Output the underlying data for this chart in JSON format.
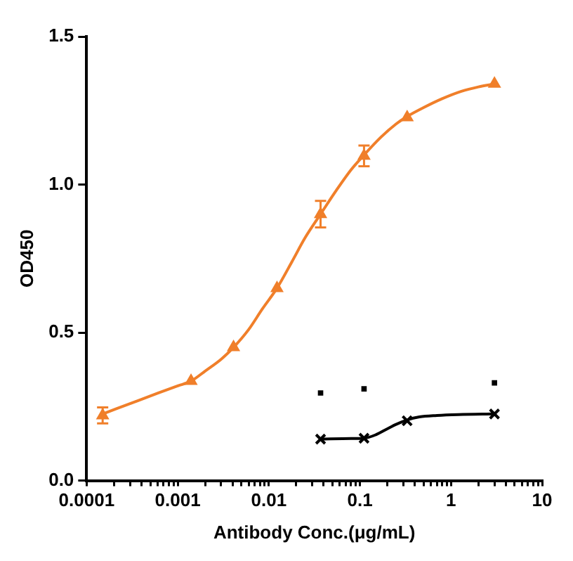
{
  "chart_data": {
    "type": "scatter",
    "xlabel": "Antibody Conc.(μg/mL)",
    "ylabel": "OD450",
    "log": "x",
    "grid": false,
    "legend": false,
    "xlim": [
      0.0001,
      10
    ],
    "ylim": [
      0,
      1.5
    ],
    "xticks": [
      0.0001,
      {
        "value": 0.0002,
        "label": null
      },
      {
        "value": 0.0003,
        "label": null
      },
      {
        "value": 0.0004,
        "label": null
      },
      {
        "value": 0.0005,
        "label": null
      },
      {
        "value": 0.0006,
        "label": null
      },
      {
        "value": 0.0007,
        "label": null
      },
      {
        "value": 0.0008,
        "label": null
      },
      {
        "value": 0.0009,
        "label": null
      },
      0.001,
      {
        "value": 0.002,
        "label": null
      },
      {
        "value": 0.003,
        "label": null
      },
      {
        "value": 0.004,
        "label": null
      },
      {
        "value": 0.005,
        "label": null
      },
      {
        "value": 0.006,
        "label": null
      },
      {
        "value": 0.007,
        "label": null
      },
      {
        "value": 0.008,
        "label": null
      },
      {
        "value": 0.009,
        "label": null
      },
      0.01,
      {
        "value": 0.02,
        "label": null
      },
      {
        "value": 0.03,
        "label": null
      },
      {
        "value": 0.04,
        "label": null
      },
      {
        "value": 0.05,
        "label": null
      },
      {
        "value": 0.06,
        "label": null
      },
      {
        "value": 0.07,
        "label": null
      },
      {
        "value": 0.08,
        "label": null
      },
      {
        "value": 0.09,
        "label": null
      },
      0.1,
      {
        "value": 0.2,
        "label": null
      },
      {
        "value": 0.3,
        "label": null
      },
      {
        "value": 0.4,
        "label": null
      },
      {
        "value": 0.5,
        "label": null
      },
      {
        "value": 0.6,
        "label": null
      },
      {
        "value": 0.7,
        "label": null
      },
      {
        "value": 0.8,
        "label": null
      },
      {
        "value": 0.9,
        "label": null
      },
      1,
      {
        "value": 2,
        "label": null
      },
      {
        "value": 3,
        "label": null
      },
      {
        "value": 4,
        "label": null
      },
      {
        "value": 5,
        "label": null
      },
      {
        "value": 6,
        "label": null
      },
      {
        "value": 7,
        "label": null
      },
      {
        "value": 8,
        "label": null
      },
      {
        "value": 9,
        "label": null
      },
      10
    ],
    "yticks": [
      {
        "value": 0,
        "label": "0.0"
      },
      {
        "value": 0.5,
        "label": "0.5"
      },
      {
        "value": 1,
        "label": "1.0"
      },
      {
        "value": 1.5,
        "label": "1.5"
      }
    ],
    "series": [
      {
        "type": "line",
        "color": "#f07f2a",
        "marker": "none",
        "x": [
          0.00015,
          0.0003,
          0.0006,
          0.001,
          0.0014,
          0.002,
          0.003,
          0.0041,
          0.006,
          0.0085,
          0.0123,
          0.018,
          0.025,
          0.037,
          0.055,
          0.08,
          0.111,
          0.17,
          0.25,
          0.33,
          0.5,
          0.8,
          1.3,
          2,
          3
        ],
        "values": [
          0.225,
          0.26,
          0.295,
          0.32,
          0.336,
          0.37,
          0.41,
          0.45,
          0.51,
          0.58,
          0.65,
          0.74,
          0.82,
          0.9,
          0.98,
          1.05,
          1.1,
          1.16,
          1.205,
          1.23,
          1.26,
          1.29,
          1.315,
          1.33,
          1.34
        ]
      },
      {
        "type": "scatter",
        "color": "#f07f2a",
        "marker": "triangle",
        "x": [
          0.00015,
          0.0014,
          0.0041,
          0.0123,
          0.037,
          0.111,
          0.33,
          3
        ],
        "values": [
          0.22,
          0.336,
          0.45,
          0.65,
          0.9,
          1.097,
          1.227,
          1.34
        ],
        "errors": [
          0.027,
          null,
          null,
          null,
          0.045,
          0.035,
          null,
          null
        ]
      },
      {
        "type": "line",
        "color": "#000000",
        "marker": "none",
        "x": [
          0.037,
          0.08,
          0.111,
          0.15,
          0.2,
          0.25,
          0.33,
          0.45,
          0.7,
          1.2,
          3
        ],
        "values": [
          0.14,
          0.142,
          0.143,
          0.155,
          0.175,
          0.19,
          0.205,
          0.215,
          0.22,
          0.223,
          0.225
        ]
      },
      {
        "type": "scatter",
        "color": "#000000",
        "marker": "cross",
        "x": [
          0.037,
          0.111,
          0.33,
          3
        ],
        "values": [
          0.14,
          0.143,
          0.202,
          0.225
        ]
      },
      {
        "type": "scatter",
        "color": "#000000",
        "marker": "square",
        "x": [
          0.037,
          0.111,
          3
        ],
        "values": [
          0.296,
          0.31,
          0.33
        ]
      }
    ]
  }
}
